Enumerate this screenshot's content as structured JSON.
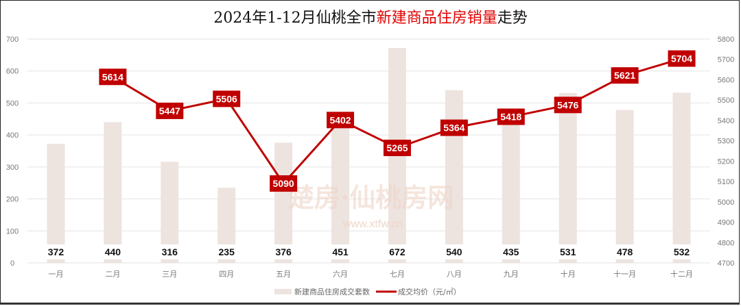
{
  "chart_data": {
    "type": "bar+line",
    "title_parts": [
      "2024年1-12月仙桃全市",
      "新建商品住房销量",
      "走势"
    ],
    "categories": [
      "一月",
      "二月",
      "三月",
      "四月",
      "五月",
      "六月",
      "七月",
      "八月",
      "九月",
      "十月",
      "十一月",
      "十二月"
    ],
    "series": [
      {
        "name": "新建商品住房成交套数",
        "type": "bar",
        "axis": "left",
        "color": "#ede3df",
        "values": [
          372,
          440,
          316,
          235,
          376,
          451,
          672,
          540,
          435,
          531,
          478,
          532
        ]
      },
      {
        "name": "成交均价（元/㎡）",
        "type": "line",
        "axis": "right",
        "color": "#c00000",
        "values": [
          null,
          5614,
          5447,
          5506,
          5090,
          5402,
          5265,
          5364,
          5418,
          5476,
          5621,
          5704
        ]
      }
    ],
    "left_axis": {
      "min": 0,
      "max": 700,
      "step": 100,
      "ticks": [
        "0",
        "100",
        "200",
        "300",
        "400",
        "500",
        "600",
        "700"
      ]
    },
    "right_axis": {
      "min": 4700,
      "max": 5800,
      "step": 100,
      "ticks": [
        "4700",
        "4800",
        "4900",
        "5000",
        "5100",
        "5200",
        "5300",
        "5400",
        "5500",
        "5600",
        "5700",
        "5800"
      ]
    },
    "grid": true,
    "legend_position": "bottom",
    "watermark": [
      "楚房·仙桃房网",
      "www.xtfw.cn"
    ]
  }
}
